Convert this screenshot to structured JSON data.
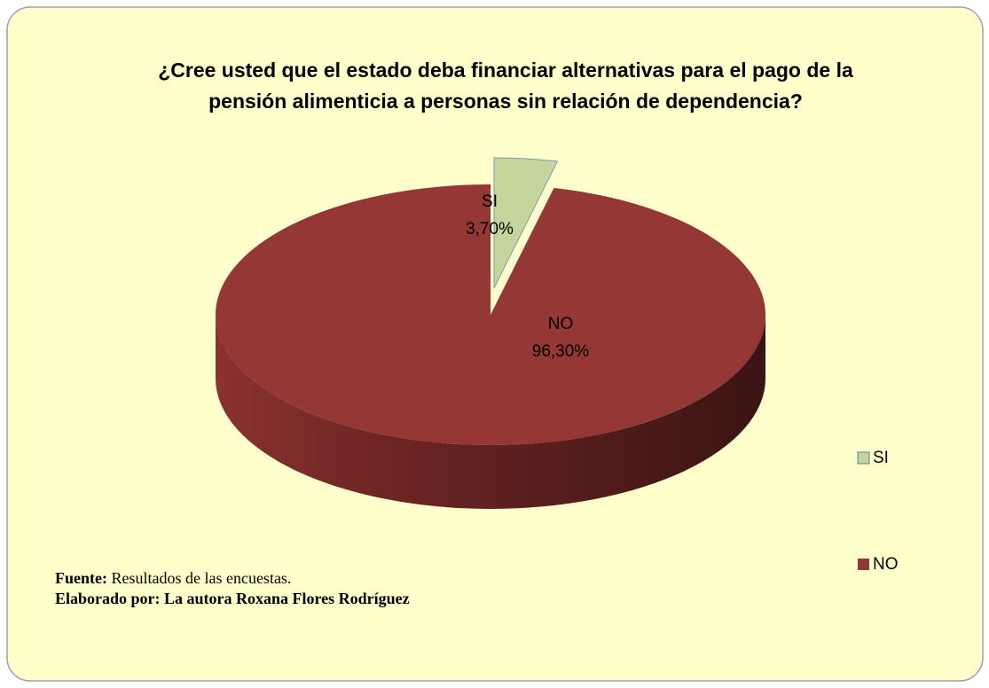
{
  "chart_data": {
    "type": "pie",
    "title": "¿Cree usted que el estado deba financiar alternativas para el pago de la pensión alimenticia a personas sin relación de dependencia?",
    "categories": [
      "SI",
      "NO"
    ],
    "values": [
      3.7,
      96.3
    ],
    "value_labels": [
      "3,70%",
      "96,30%"
    ],
    "colors": [
      "#c3d69b",
      "#953735"
    ],
    "legend": "right",
    "source_label": "Fuente:",
    "source_text": "Resultados de las encuestas.",
    "credit": "Elaborado por: La autora Roxana Flores Rodríguez"
  }
}
